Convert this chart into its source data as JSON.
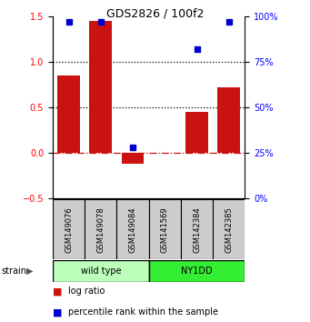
{
  "title": "GDS2826 / 100f2",
  "samples": [
    "GSM149076",
    "GSM149078",
    "GSM149084",
    "GSM141569",
    "GSM142384",
    "GSM142385"
  ],
  "log_ratio": [
    0.85,
    1.45,
    -0.12,
    0.0,
    0.45,
    0.72
  ],
  "percentile": [
    97,
    97,
    28,
    0,
    82,
    97
  ],
  "wt_color": "#bbffbb",
  "ny_color": "#33ee33",
  "sample_box_color": "#cccccc",
  "bar_color": "#cc1111",
  "dot_color": "#0000cc",
  "ylim_left": [
    -0.5,
    1.5
  ],
  "ylim_right": [
    0,
    100
  ],
  "yticks_left": [
    -0.5,
    0.0,
    0.5,
    1.0,
    1.5
  ],
  "yticks_right": [
    0,
    25,
    50,
    75,
    100
  ],
  "hlines": [
    0.5,
    1.0
  ],
  "zero_line_color": "#cc1111",
  "legend_log_ratio": "log ratio",
  "legend_percentile": "percentile rank within the sample",
  "wt_label": "wild type",
  "ny_label": "NY1DD",
  "strain_label": "strain"
}
